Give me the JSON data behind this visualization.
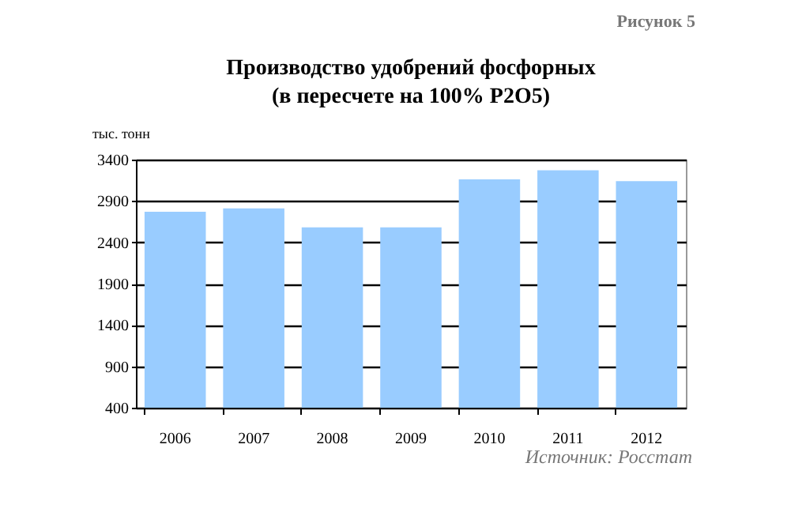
{
  "chart_data": {
    "type": "bar",
    "title": "Производство удобрений фосфорных",
    "subtitle": "(в пересчете на 100% P2O5)",
    "ylabel": "тыс. тонн",
    "annotations": [
      "Рисунок 5",
      "Источник: Росстат"
    ],
    "categories": [
      "2006",
      "2007",
      "2008",
      "2009",
      "2010",
      "2011",
      "2012"
    ],
    "values": [
      2770,
      2810,
      2580,
      2580,
      3160,
      3270,
      3140
    ],
    "color": "#99ccff",
    "ylim": [
      400,
      3400
    ],
    "yticks": [
      400,
      900,
      1400,
      1900,
      2400,
      2900,
      3400
    ],
    "grid": "y"
  }
}
